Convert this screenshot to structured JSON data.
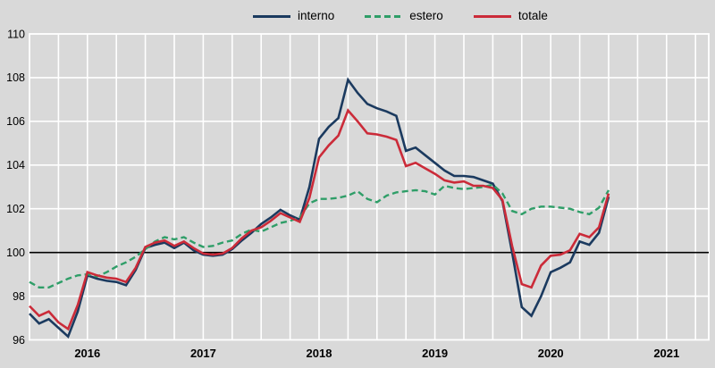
{
  "chart_data": {
    "type": "line",
    "title": "",
    "x_start": "2016-01",
    "x_end": "2021-01",
    "x_frequency": "monthly",
    "year_labels": [
      "2016",
      "2017",
      "2018",
      "2019",
      "2020",
      "2021"
    ],
    "y_ticks": [
      96,
      98,
      100,
      102,
      104,
      106,
      108,
      110
    ],
    "ylim": [
      96,
      110
    ],
    "reference_line": 100,
    "grid": "on",
    "legend_position": "top-center",
    "background_color": "#d9d9d9",
    "gridline_color": "#ffffff",
    "reference_line_color": "#000000",
    "series": [
      {
        "name": "interno",
        "color": "#1B3A5F",
        "style": "solid",
        "values": [
          97.2,
          96.75,
          96.95,
          96.55,
          96.15,
          97.3,
          98.95,
          98.8,
          98.7,
          98.65,
          98.5,
          99.2,
          100.2,
          100.35,
          100.45,
          100.2,
          100.45,
          100.1,
          99.9,
          99.85,
          99.9,
          100.15,
          100.55,
          100.9,
          101.3,
          101.6,
          101.95,
          101.7,
          101.5,
          103.0,
          105.2,
          105.75,
          106.15,
          107.9,
          107.3,
          106.8,
          106.6,
          106.45,
          106.25,
          104.65,
          104.8,
          104.45,
          104.1,
          103.75,
          103.5,
          103.5,
          103.45,
          103.3,
          103.15,
          102.35,
          100.0,
          97.5,
          97.1,
          98.0,
          99.1,
          99.3,
          99.55,
          100.5,
          100.35,
          100.9,
          102.55
        ]
      },
      {
        "name": "estero",
        "color": "#2F9E68",
        "style": "dashed",
        "values": [
          98.65,
          98.4,
          98.4,
          98.6,
          98.8,
          98.95,
          99.0,
          98.9,
          99.1,
          99.35,
          99.55,
          99.8,
          100.15,
          100.5,
          100.7,
          100.6,
          100.7,
          100.45,
          100.25,
          100.3,
          100.45,
          100.55,
          100.85,
          101.05,
          100.95,
          101.15,
          101.35,
          101.45,
          101.6,
          102.25,
          102.45,
          102.45,
          102.5,
          102.6,
          102.8,
          102.45,
          102.3,
          102.6,
          102.75,
          102.8,
          102.85,
          102.8,
          102.65,
          103.05,
          102.95,
          102.9,
          102.95,
          103.0,
          103.1,
          102.7,
          101.9,
          101.75,
          102.0,
          102.1,
          102.1,
          102.05,
          102.0,
          101.85,
          101.75,
          102.05,
          102.85
        ]
      },
      {
        "name": "totale",
        "color": "#CB2B39",
        "style": "solid",
        "values": [
          97.55,
          97.1,
          97.3,
          96.8,
          96.5,
          97.6,
          99.1,
          98.95,
          98.85,
          98.8,
          98.65,
          99.3,
          100.25,
          100.45,
          100.55,
          100.3,
          100.5,
          100.2,
          99.95,
          99.9,
          99.95,
          100.2,
          100.65,
          101.0,
          101.15,
          101.45,
          101.8,
          101.6,
          101.4,
          102.5,
          104.35,
          104.9,
          105.35,
          106.5,
          106.0,
          105.45,
          105.4,
          105.3,
          105.15,
          103.95,
          104.1,
          103.85,
          103.6,
          103.3,
          103.2,
          103.25,
          103.05,
          103.05,
          102.95,
          102.4,
          100.3,
          98.55,
          98.4,
          99.4,
          99.85,
          99.9,
          100.1,
          100.85,
          100.7,
          101.15,
          102.7
        ]
      }
    ]
  }
}
